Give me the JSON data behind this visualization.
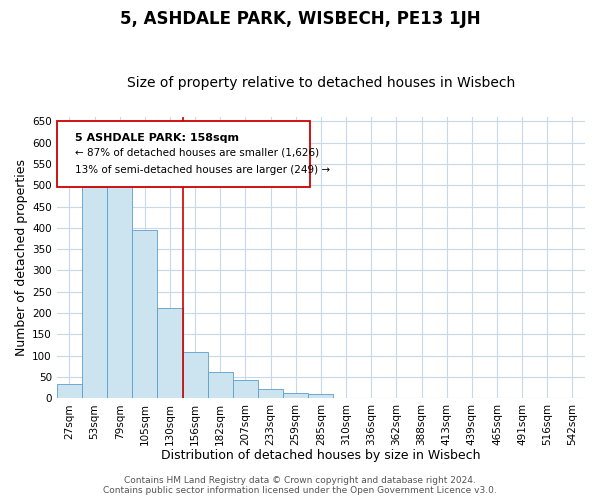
{
  "title": "5, ASHDALE PARK, WISBECH, PE13 1JH",
  "subtitle": "Size of property relative to detached houses in Wisbech",
  "xlabel": "Distribution of detached houses by size in Wisbech",
  "ylabel": "Number of detached properties",
  "bar_labels": [
    "27sqm",
    "53sqm",
    "79sqm",
    "105sqm",
    "130sqm",
    "156sqm",
    "182sqm",
    "207sqm",
    "233sqm",
    "259sqm",
    "285sqm",
    "310sqm",
    "336sqm",
    "362sqm",
    "388sqm",
    "413sqm",
    "439sqm",
    "465sqm",
    "491sqm",
    "516sqm",
    "542sqm"
  ],
  "bar_values": [
    33,
    495,
    505,
    395,
    212,
    108,
    62,
    42,
    22,
    13,
    11,
    0,
    0,
    0,
    0,
    1,
    0,
    0,
    0,
    0,
    1
  ],
  "bar_color": "#cce4f0",
  "bar_edge_color": "#5b9ec9",
  "vline_color": "#cc0000",
  "vline_label_title": "5 ASHDALE PARK: 158sqm",
  "vline_label_line1": "← 87% of detached houses are smaller (1,626)",
  "vline_label_line2": "13% of semi-detached houses are larger (249) →",
  "annotation_box_color": "#cc0000",
  "ylim": [
    0,
    660
  ],
  "yticks": [
    0,
    50,
    100,
    150,
    200,
    250,
    300,
    350,
    400,
    450,
    500,
    550,
    600,
    650
  ],
  "footer_line1": "Contains HM Land Registry data © Crown copyright and database right 2024.",
  "footer_line2": "Contains public sector information licensed under the Open Government Licence v3.0.",
  "bg_color": "#ffffff",
  "grid_color": "#c8d8e8",
  "title_fontsize": 12,
  "subtitle_fontsize": 10,
  "axis_label_fontsize": 9,
  "tick_fontsize": 7.5,
  "footer_fontsize": 6.5
}
